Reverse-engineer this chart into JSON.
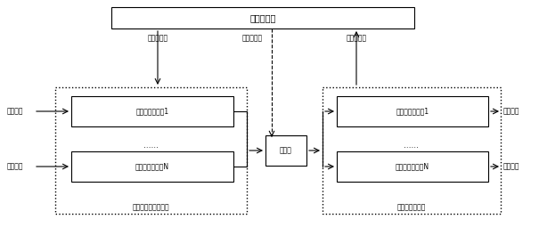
{
  "title": "管理服务器",
  "collect_cluster_label": "信号采集服务器集群",
  "distribute_cluster_label": "分发服务器集群",
  "collect_server1": "信号采集服务器1",
  "collect_serverN": "信号采集服务器N",
  "distribute_server1": "信号分发服务器1",
  "distribute_serverN": "信号分发服务器N",
  "switch_label": "交换机",
  "input1": "输入信号",
  "input2": "输入信号",
  "output1": "输出信号",
  "output2": "输出信号",
  "label_server_mgmt": "服务器管理",
  "label_dispatch_ctrl": "一路发控制",
  "label_server_monitor": "服务器管理",
  "dots": "……",
  "bg_color": "#ffffff",
  "text_color": "#000000",
  "fig_w": 6.05,
  "fig_h": 2.65,
  "dpi": 100
}
